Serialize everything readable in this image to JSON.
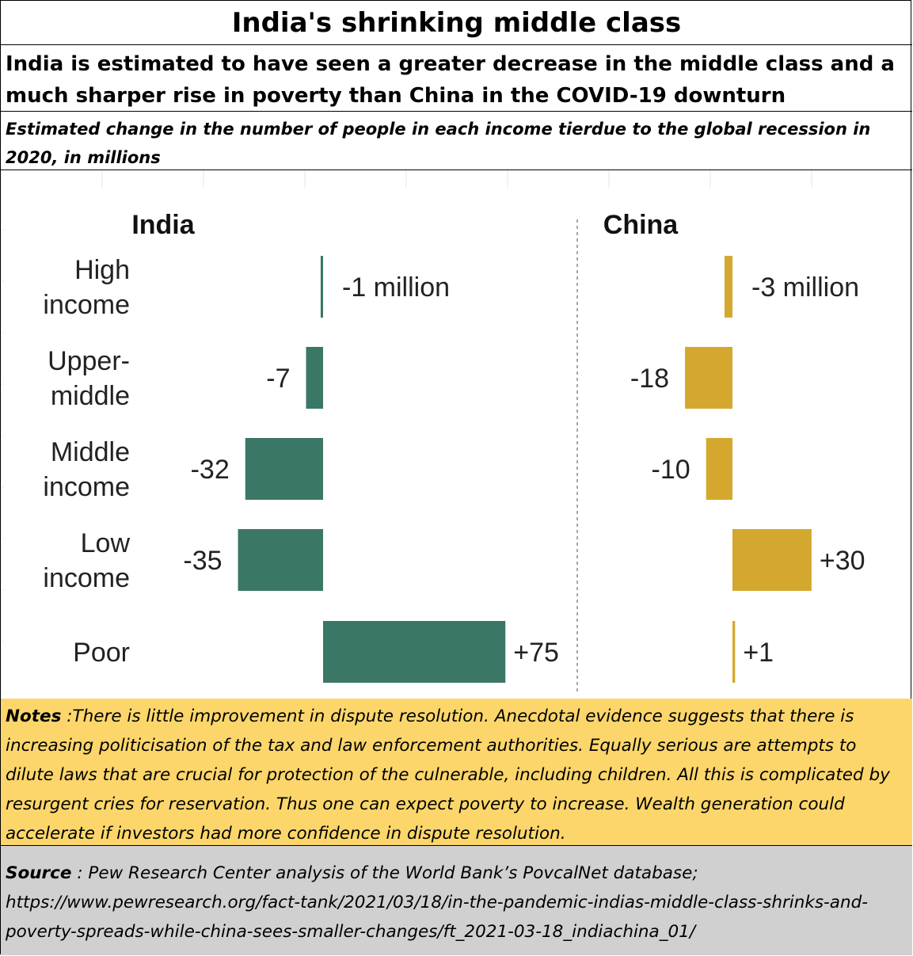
{
  "header": {
    "title": "India's shrinking middle class",
    "subtitle": "India is estimated to have seen a greater decrease in the middle class and a much sharper rise in poverty than China in the COVID-19 downturn",
    "description": "Estimated change in the number of people in each income tierdue to the global recession  in 2020, in millions"
  },
  "chart_data": [
    {
      "type": "bar",
      "orientation": "horizontal",
      "title": "India",
      "color": "#3b7766",
      "categories": [
        "High income",
        "Upper-middle",
        "Middle income",
        "Low income",
        "Poor"
      ],
      "values": [
        -1,
        -7,
        -32,
        -35,
        75
      ],
      "data_labels": [
        "-1 million",
        "-7",
        "-32",
        "-35",
        "+75"
      ]
    },
    {
      "type": "bar",
      "orientation": "horizontal",
      "title": "China",
      "color": "#d4a82e",
      "categories": [
        "High income",
        "Upper-middle",
        "Middle income",
        "Low income",
        "Poor"
      ],
      "values": [
        -3,
        -18,
        -10,
        30,
        1
      ],
      "data_labels": [
        "-3 million",
        "-18",
        "-10",
        "+30",
        "+1"
      ]
    }
  ],
  "category_labels": [
    [
      "High",
      "income"
    ],
    [
      "Upper-",
      "middle"
    ],
    [
      "Middle",
      "income"
    ],
    [
      "Low",
      "income"
    ],
    [
      "Poor"
    ]
  ],
  "notes": {
    "label": "Notes",
    "text": " :There is little improvement in dispute resolution. Anecdotal evidence suggests that there is increasing politicisation of the tax and law enforcement authorities. Equally serious are attempts to dilute laws that are crucial for protection of the culnerable, including children. All this is complicated by resurgent cries for reservation. Thus one can expect poverty to increase.  Wealth generation could accelerate if investors had more confidence in dispute resolution."
  },
  "source": {
    "label": "Source",
    "text": " : Pew Research Center analysis of the World Bank’s PovcalNet database; https://www.pewresearch.org/fact-tank/2021/03/18/in-the-pandemic-indias-middle-class-shrinks-and-poverty-spreads-while-china-sees-smaller-changes/ft_2021-03-18_indiachina_01/"
  }
}
